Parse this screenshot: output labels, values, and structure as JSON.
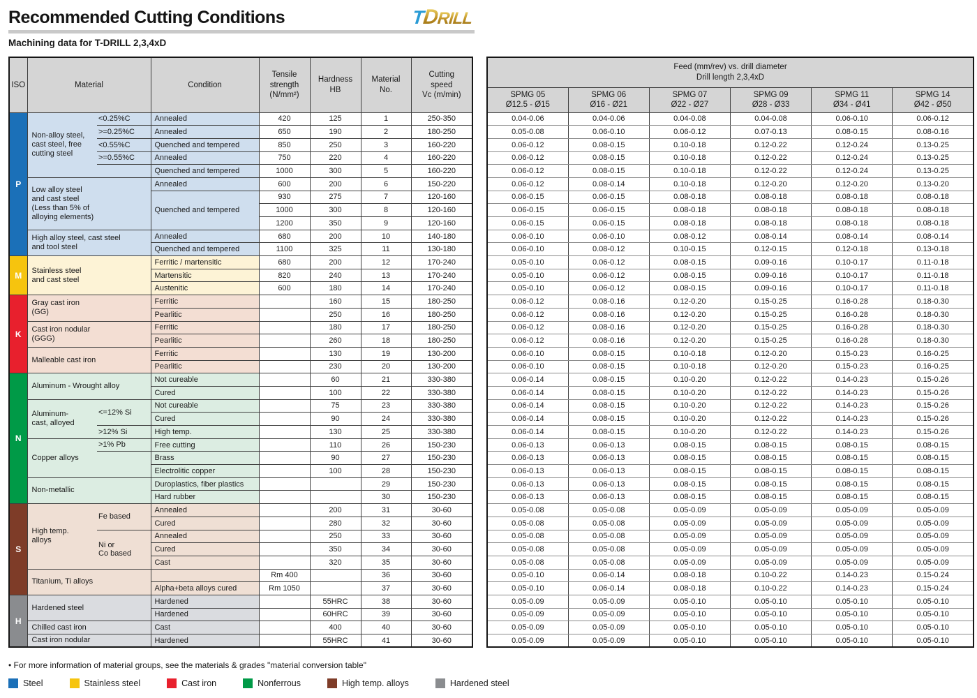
{
  "page": {
    "title": "Recommended Cutting Conditions",
    "subtitle": "Machining data for T-DRILL 2,3,4xD",
    "logo": {
      "t": "T",
      "d": "D",
      "rill": "RILL"
    },
    "footnote": "• For more information of material groups, see the materials & grades \"material conversion table\""
  },
  "left_table": {
    "headers": {
      "iso": "ISO",
      "material": "Material",
      "condition": "Condition",
      "tensile": "Tensile\nstrength\n(N/mm²)",
      "hardness": "Hardness\nHB",
      "material_no": "Material\nNo.",
      "cutting_speed": "Cutting\nspeed\nVc (m/min)"
    },
    "iso_groups": [
      {
        "label": "P",
        "start": 1,
        "span": 11,
        "color": "#1b70b8",
        "bg": "#cfdeee"
      },
      {
        "label": "M",
        "start": 12,
        "span": 3,
        "color": "#f6c40e",
        "bg": "#fdf3d6"
      },
      {
        "label": "K",
        "start": 15,
        "span": 6,
        "color": "#e8202d",
        "bg": "#f3ded3"
      },
      {
        "label": "N",
        "start": 21,
        "span": 10,
        "color": "#009a47",
        "bg": "#dcede2"
      },
      {
        "label": "S",
        "start": 31,
        "span": 7,
        "color": "#7e3c28",
        "bg": "#efdfd4"
      },
      {
        "label": "H",
        "start": 38,
        "span": 4,
        "color": "#8a8c8f",
        "bg": "#dadce0"
      }
    ],
    "material_groups": [
      {
        "start": 1,
        "span": 5,
        "wide": false,
        "label": "Non-alloy steel,\ncast steel, free\ncutting steel"
      },
      {
        "start": 6,
        "span": 4,
        "wide": true,
        "label": "Low alloy steel\nand cast steel\n(Less than 5% of\nalloying elements)"
      },
      {
        "start": 10,
        "span": 2,
        "wide": true,
        "label": "High alloy steel, cast steel\nand tool steel"
      },
      {
        "start": 12,
        "span": 3,
        "wide": true,
        "label": "Stainless steel\nand cast steel"
      },
      {
        "start": 15,
        "span": 2,
        "wide": true,
        "label": "Gray cast iron\n(GG)"
      },
      {
        "start": 17,
        "span": 2,
        "wide": true,
        "label": "Cast iron nodular\n(GGG)"
      },
      {
        "start": 19,
        "span": 2,
        "wide": true,
        "label": "Malleable cast iron"
      },
      {
        "start": 21,
        "span": 2,
        "wide": true,
        "label": "Aluminum - Wrought alloy"
      },
      {
        "start": 23,
        "span": 3,
        "wide": false,
        "label": "Aluminum-\ncast, alloyed"
      },
      {
        "start": 26,
        "span": 3,
        "wide": false,
        "label": "Copper alloys"
      },
      {
        "start": 29,
        "span": 2,
        "wide": true,
        "label": "Non-metallic"
      },
      {
        "start": 31,
        "span": 5,
        "wide": false,
        "label": "High temp.\nalloys"
      },
      {
        "start": 36,
        "span": 2,
        "wide": true,
        "label": "Titanium, Ti alloys"
      },
      {
        "start": 38,
        "span": 2,
        "wide": true,
        "label": "Hardened steel"
      },
      {
        "start": 40,
        "span": 1,
        "wide": true,
        "label": "Chilled cast iron"
      },
      {
        "start": 41,
        "span": 1,
        "wide": true,
        "label": "Cast iron nodular"
      }
    ],
    "sub_groups": [
      {
        "start": 1,
        "span": 1,
        "label": "<0.25%C"
      },
      {
        "start": 2,
        "span": 1,
        "label": ">=0.25%C"
      },
      {
        "start": 3,
        "span": 1,
        "label": "<0.55%C"
      },
      {
        "start": 4,
        "span": 1,
        "label": ">=0.55%C"
      },
      {
        "start": 5,
        "span": 1,
        "label": ""
      },
      {
        "start": 23,
        "span": 2,
        "label": "<=12% Si"
      },
      {
        "start": 25,
        "span": 1,
        "label": ">12% Si"
      },
      {
        "start": 26,
        "span": 1,
        "label": ">1% Pb"
      },
      {
        "start": 27,
        "span": 2,
        "label": ""
      },
      {
        "start": 31,
        "span": 2,
        "label": "Fe based"
      },
      {
        "start": 33,
        "span": 3,
        "label": "Ni or\nCo based"
      }
    ],
    "condition_cells": [
      {
        "start": 1,
        "span": 1,
        "label": "Annealed"
      },
      {
        "start": 2,
        "span": 1,
        "label": "Annealed"
      },
      {
        "start": 3,
        "span": 1,
        "label": "Quenched and tempered"
      },
      {
        "start": 4,
        "span": 1,
        "label": "Annealed"
      },
      {
        "start": 5,
        "span": 1,
        "label": "Quenched and tempered"
      },
      {
        "start": 6,
        "span": 1,
        "label": "Annealed"
      },
      {
        "start": 7,
        "span": 3,
        "label": "Quenched and tempered"
      },
      {
        "start": 10,
        "span": 1,
        "label": "Annealed"
      },
      {
        "start": 11,
        "span": 1,
        "label": "Quenched and tempered"
      },
      {
        "start": 12,
        "span": 1,
        "label": "Ferritic / martensitic"
      },
      {
        "start": 13,
        "span": 1,
        "label": "Martensitic"
      },
      {
        "start": 14,
        "span": 1,
        "label": "Austenitic"
      },
      {
        "start": 15,
        "span": 1,
        "label": "Ferritic"
      },
      {
        "start": 16,
        "span": 1,
        "label": "Pearlitic"
      },
      {
        "start": 17,
        "span": 1,
        "label": "Ferritic"
      },
      {
        "start": 18,
        "span": 1,
        "label": "Pearlitic"
      },
      {
        "start": 19,
        "span": 1,
        "label": "Ferritic"
      },
      {
        "start": 20,
        "span": 1,
        "label": "Pearlitic"
      },
      {
        "start": 21,
        "span": 1,
        "label": "Not cureable"
      },
      {
        "start": 22,
        "span": 1,
        "label": "Cured"
      },
      {
        "start": 23,
        "span": 1,
        "label": "Not cureable"
      },
      {
        "start": 24,
        "span": 1,
        "label": "Cured"
      },
      {
        "start": 25,
        "span": 1,
        "label": "High temp."
      },
      {
        "start": 26,
        "span": 1,
        "label": "Free cutting"
      },
      {
        "start": 27,
        "span": 1,
        "label": "Brass"
      },
      {
        "start": 28,
        "span": 1,
        "label": "Electrolitic copper"
      },
      {
        "start": 29,
        "span": 1,
        "label": "Duroplastics, fiber plastics"
      },
      {
        "start": 30,
        "span": 1,
        "label": "Hard rubber"
      },
      {
        "start": 31,
        "span": 1,
        "label": "Annealed"
      },
      {
        "start": 32,
        "span": 1,
        "label": "Cured"
      },
      {
        "start": 33,
        "span": 1,
        "label": "Annealed"
      },
      {
        "start": 34,
        "span": 1,
        "label": "Cured"
      },
      {
        "start": 35,
        "span": 1,
        "label": "Cast"
      },
      {
        "start": 36,
        "span": 1,
        "label": ""
      },
      {
        "start": 37,
        "span": 1,
        "label": "Alpha+beta alloys cured"
      },
      {
        "start": 38,
        "span": 1,
        "label": "Hardened"
      },
      {
        "start": 39,
        "span": 1,
        "label": "Hardened"
      },
      {
        "start": 40,
        "span": 1,
        "label": "Cast"
      },
      {
        "start": 41,
        "span": 1,
        "label": "Hardened"
      }
    ],
    "rows": [
      {
        "tensile": "420",
        "hb": "125",
        "no": "1",
        "vc": "250-350"
      },
      {
        "tensile": "650",
        "hb": "190",
        "no": "2",
        "vc": "180-250"
      },
      {
        "tensile": "850",
        "hb": "250",
        "no": "3",
        "vc": "160-220"
      },
      {
        "tensile": "750",
        "hb": "220",
        "no": "4",
        "vc": "160-220"
      },
      {
        "tensile": "1000",
        "hb": "300",
        "no": "5",
        "vc": "160-220"
      },
      {
        "tensile": "600",
        "hb": "200",
        "no": "6",
        "vc": "150-220"
      },
      {
        "tensile": "930",
        "hb": "275",
        "no": "7",
        "vc": "120-160"
      },
      {
        "tensile": "1000",
        "hb": "300",
        "no": "8",
        "vc": "120-160"
      },
      {
        "tensile": "1200",
        "hb": "350",
        "no": "9",
        "vc": "120-160"
      },
      {
        "tensile": "680",
        "hb": "200",
        "no": "10",
        "vc": "140-180"
      },
      {
        "tensile": "1100",
        "hb": "325",
        "no": "11",
        "vc": "130-180"
      },
      {
        "tensile": "680",
        "hb": "200",
        "no": "12",
        "vc": "170-240"
      },
      {
        "tensile": "820",
        "hb": "240",
        "no": "13",
        "vc": "170-240"
      },
      {
        "tensile": "600",
        "hb": "180",
        "no": "14",
        "vc": "170-240"
      },
      {
        "tensile": "",
        "hb": "160",
        "no": "15",
        "vc": "180-250"
      },
      {
        "tensile": "",
        "hb": "250",
        "no": "16",
        "vc": "180-250"
      },
      {
        "tensile": "",
        "hb": "180",
        "no": "17",
        "vc": "180-250"
      },
      {
        "tensile": "",
        "hb": "260",
        "no": "18",
        "vc": "180-250"
      },
      {
        "tensile": "",
        "hb": "130",
        "no": "19",
        "vc": "130-200"
      },
      {
        "tensile": "",
        "hb": "230",
        "no": "20",
        "vc": "130-200"
      },
      {
        "tensile": "",
        "hb": "60",
        "no": "21",
        "vc": "330-380"
      },
      {
        "tensile": "",
        "hb": "100",
        "no": "22",
        "vc": "330-380"
      },
      {
        "tensile": "",
        "hb": "75",
        "no": "23",
        "vc": "330-380"
      },
      {
        "tensile": "",
        "hb": "90",
        "no": "24",
        "vc": "330-380"
      },
      {
        "tensile": "",
        "hb": "130",
        "no": "25",
        "vc": "330-380"
      },
      {
        "tensile": "",
        "hb": "110",
        "no": "26",
        "vc": "150-230"
      },
      {
        "tensile": "",
        "hb": "90",
        "no": "27",
        "vc": "150-230"
      },
      {
        "tensile": "",
        "hb": "100",
        "no": "28",
        "vc": "150-230"
      },
      {
        "tensile": "",
        "hb": "",
        "no": "29",
        "vc": "150-230"
      },
      {
        "tensile": "",
        "hb": "",
        "no": "30",
        "vc": "150-230"
      },
      {
        "tensile": "",
        "hb": "200",
        "no": "31",
        "vc": "30-60"
      },
      {
        "tensile": "",
        "hb": "280",
        "no": "32",
        "vc": "30-60"
      },
      {
        "tensile": "",
        "hb": "250",
        "no": "33",
        "vc": "30-60"
      },
      {
        "tensile": "",
        "hb": "350",
        "no": "34",
        "vc": "30-60"
      },
      {
        "tensile": "",
        "hb": "320",
        "no": "35",
        "vc": "30-60"
      },
      {
        "tensile": "Rm 400",
        "hb": "",
        "no": "36",
        "vc": "30-60"
      },
      {
        "tensile": "Rm 1050",
        "hb": "",
        "no": "37",
        "vc": "30-60"
      },
      {
        "tensile": "",
        "hb": "55HRC",
        "no": "38",
        "vc": "30-60"
      },
      {
        "tensile": "",
        "hb": "60HRC",
        "no": "39",
        "vc": "30-60"
      },
      {
        "tensile": "",
        "hb": "400",
        "no": "40",
        "vc": "30-60"
      },
      {
        "tensile": "",
        "hb": "55HRC",
        "no": "41",
        "vc": "30-60"
      }
    ]
  },
  "right_table": {
    "band_title": "Feed (mm/rev) vs. drill diameter\nDrill length 2,3,4xD",
    "columns": [
      "SPMG 05\nØ12.5 - Ø15",
      "SPMG 06\nØ16 - Ø21",
      "SPMG 07\nØ22 - Ø27",
      "SPMG 09\nØ28 - Ø33",
      "SPMG 11\nØ34 - Ø41",
      "SPMG 14\nØ42 - Ø50"
    ],
    "rows": [
      [
        "0.04-0.06",
        "0.04-0.06",
        "0.04-0.08",
        "0.04-0.08",
        "0.06-0.10",
        "0.06-0.12"
      ],
      [
        "0.05-0.08",
        "0.06-0.10",
        "0.06-0.12",
        "0.07-0.13",
        "0.08-0.15",
        "0.08-0.16"
      ],
      [
        "0.06-0.12",
        "0.08-0.15",
        "0.10-0.18",
        "0.12-0.22",
        "0.12-0.24",
        "0.13-0.25"
      ],
      [
        "0.06-0.12",
        "0.08-0.15",
        "0.10-0.18",
        "0.12-0.22",
        "0.12-0.24",
        "0.13-0.25"
      ],
      [
        "0.06-0.12",
        "0.08-0.15",
        "0.10-0.18",
        "0.12-0.22",
        "0.12-0.24",
        "0.13-0.25"
      ],
      [
        "0.06-0.12",
        "0.08-0.14",
        "0.10-0.18",
        "0.12-0.20",
        "0.12-0.20",
        "0.13-0.20"
      ],
      [
        "0.06-0.15",
        "0.06-0.15",
        "0.08-0.18",
        "0.08-0.18",
        "0.08-0.18",
        "0.08-0.18"
      ],
      [
        "0.06-0.15",
        "0.06-0.15",
        "0.08-0.18",
        "0.08-0.18",
        "0.08-0.18",
        "0.08-0.18"
      ],
      [
        "0.06-0.15",
        "0.06-0.15",
        "0.08-0.18",
        "0.08-0.18",
        "0.08-0.18",
        "0.08-0.18"
      ],
      [
        "0.06-0.10",
        "0.06-0.10",
        "0.08-0.12",
        "0.08-0.14",
        "0.08-0.14",
        "0.08-0.14"
      ],
      [
        "0.06-0.10",
        "0.08-0.12",
        "0.10-0.15",
        "0.12-0.15",
        "0.12-0.18",
        "0.13-0.18"
      ],
      [
        "0.05-0.10",
        "0.06-0.12",
        "0.08-0.15",
        "0.09-0.16",
        "0.10-0.17",
        "0.11-0.18"
      ],
      [
        "0.05-0.10",
        "0.06-0.12",
        "0.08-0.15",
        "0.09-0.16",
        "0.10-0.17",
        "0.11-0.18"
      ],
      [
        "0.05-0.10",
        "0.06-0.12",
        "0.08-0.15",
        "0.09-0.16",
        "0.10-0.17",
        "0.11-0.18"
      ],
      [
        "0.06-0.12",
        "0.08-0.16",
        "0.12-0.20",
        "0.15-0.25",
        "0.16-0.28",
        "0.18-0.30"
      ],
      [
        "0.06-0.12",
        "0.08-0.16",
        "0.12-0.20",
        "0.15-0.25",
        "0.16-0.28",
        "0.18-0.30"
      ],
      [
        "0.06-0.12",
        "0.08-0.16",
        "0.12-0.20",
        "0.15-0.25",
        "0.16-0.28",
        "0.18-0.30"
      ],
      [
        "0.06-0.12",
        "0.08-0.16",
        "0.12-0.20",
        "0.15-0.25",
        "0.16-0.28",
        "0.18-0.30"
      ],
      [
        "0.06-0.10",
        "0.08-0.15",
        "0.10-0.18",
        "0.12-0.20",
        "0.15-0.23",
        "0.16-0.25"
      ],
      [
        "0.06-0.10",
        "0.08-0.15",
        "0.10-0.18",
        "0.12-0.20",
        "0.15-0.23",
        "0.16-0.25"
      ],
      [
        "0.06-0.14",
        "0.08-0.15",
        "0.10-0.20",
        "0.12-0.22",
        "0.14-0.23",
        "0.15-0.26"
      ],
      [
        "0.06-0.14",
        "0.08-0.15",
        "0.10-0.20",
        "0.12-0.22",
        "0.14-0.23",
        "0.15-0.26"
      ],
      [
        "0.06-0.14",
        "0.08-0.15",
        "0.10-0.20",
        "0.12-0.22",
        "0.14-0.23",
        "0.15-0.26"
      ],
      [
        "0.06-0.14",
        "0.08-0.15",
        "0.10-0.20",
        "0.12-0.22",
        "0.14-0.23",
        "0.15-0.26"
      ],
      [
        "0.06-0.14",
        "0.08-0.15",
        "0.10-0.20",
        "0.12-0.22",
        "0.14-0.23",
        "0.15-0.26"
      ],
      [
        "0.06-0.13",
        "0.06-0.13",
        "0.08-0.15",
        "0.08-0.15",
        "0.08-0.15",
        "0.08-0.15"
      ],
      [
        "0.06-0.13",
        "0.06-0.13",
        "0.08-0.15",
        "0.08-0.15",
        "0.08-0.15",
        "0.08-0.15"
      ],
      [
        "0.06-0.13",
        "0.06-0.13",
        "0.08-0.15",
        "0.08-0.15",
        "0.08-0.15",
        "0.08-0.15"
      ],
      [
        "0.06-0.13",
        "0.06-0.13",
        "0.08-0.15",
        "0.08-0.15",
        "0.08-0.15",
        "0.08-0.15"
      ],
      [
        "0.06-0.13",
        "0.06-0.13",
        "0.08-0.15",
        "0.08-0.15",
        "0.08-0.15",
        "0.08-0.15"
      ],
      [
        "0.05-0.08",
        "0.05-0.08",
        "0.05-0.09",
        "0.05-0.09",
        "0.05-0.09",
        "0.05-0.09"
      ],
      [
        "0.05-0.08",
        "0.05-0.08",
        "0.05-0.09",
        "0.05-0.09",
        "0.05-0.09",
        "0.05-0.09"
      ],
      [
        "0.05-0.08",
        "0.05-0.08",
        "0.05-0.09",
        "0.05-0.09",
        "0.05-0.09",
        "0.05-0.09"
      ],
      [
        "0.05-0.08",
        "0.05-0.08",
        "0.05-0.09",
        "0.05-0.09",
        "0.05-0.09",
        "0.05-0.09"
      ],
      [
        "0.05-0.08",
        "0.05-0.08",
        "0.05-0.09",
        "0.05-0.09",
        "0.05-0.09",
        "0.05-0.09"
      ],
      [
        "0.05-0.10",
        "0.06-0.14",
        "0.08-0.18",
        "0.10-0.22",
        "0.14-0.23",
        "0.15-0.24"
      ],
      [
        "0.05-0.10",
        "0.06-0.14",
        "0.08-0.18",
        "0.10-0.22",
        "0.14-0.23",
        "0.15-0.24"
      ],
      [
        "0.05-0.09",
        "0.05-0.09",
        "0.05-0.10",
        "0.05-0.10",
        "0.05-0.10",
        "0.05-0.10"
      ],
      [
        "0.05-0.09",
        "0.05-0.09",
        "0.05-0.10",
        "0.05-0.10",
        "0.05-0.10",
        "0.05-0.10"
      ],
      [
        "0.05-0.09",
        "0.05-0.09",
        "0.05-0.10",
        "0.05-0.10",
        "0.05-0.10",
        "0.05-0.10"
      ],
      [
        "0.05-0.09",
        "0.05-0.09",
        "0.05-0.10",
        "0.05-0.10",
        "0.05-0.10",
        "0.05-0.10"
      ]
    ]
  },
  "legend": {
    "items": [
      {
        "label": "Steel",
        "color": "#1b70b8"
      },
      {
        "label": "Stainless steel",
        "color": "#f6c40e"
      },
      {
        "label": "Cast iron",
        "color": "#e8202d"
      },
      {
        "label": "Nonferrous",
        "color": "#009a47"
      },
      {
        "label": "High temp. alloys",
        "color": "#7e3c28"
      },
      {
        "label": "Hardened steel",
        "color": "#8a8c8f"
      }
    ]
  }
}
